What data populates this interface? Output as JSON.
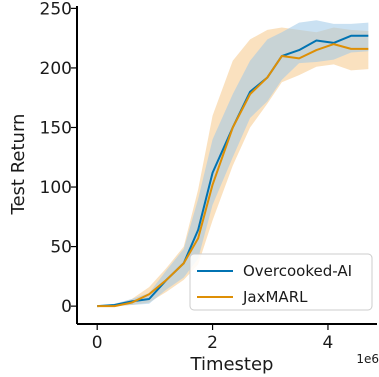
{
  "chart_data": {
    "type": "line",
    "xlabel": "Timestep",
    "ylabel": "Test Return",
    "x_offset_label": "1e6",
    "xlim": [
      -0.35,
      4.85
    ],
    "ylim": [
      -15,
      252
    ],
    "xticks": [
      0,
      2,
      4
    ],
    "xtick_labels": [
      "0",
      "2",
      "4"
    ],
    "yticks": [
      0,
      50,
      100,
      150,
      200,
      250
    ],
    "ytick_labels": [
      "0",
      "50",
      "100",
      "150",
      "200",
      "250"
    ],
    "grid": false,
    "legend_position": "lower right",
    "x": [
      0,
      0.3,
      0.6,
      0.9,
      1.2,
      1.5,
      1.75,
      2.0,
      2.35,
      2.65,
      2.95,
      3.2,
      3.5,
      3.8,
      4.1,
      4.4,
      4.7
    ],
    "series": [
      {
        "name": "Overcooked-AI",
        "color": "#0173b2",
        "band_color": "#9ec9e8",
        "values": [
          0,
          1,
          4,
          6,
          22,
          36,
          64,
          112,
          150,
          180,
          192,
          210,
          215,
          223,
          221,
          227,
          227
        ],
        "lower": [
          0,
          0,
          1,
          2,
          14,
          24,
          40,
          85,
          125,
          158,
          172,
          190,
          204,
          205,
          207,
          213,
          214
        ],
        "upper": [
          0,
          2,
          6,
          11,
          30,
          48,
          90,
          140,
          178,
          206,
          224,
          230,
          238,
          240,
          237,
          237,
          238
        ]
      },
      {
        "name": "JaxMARL",
        "color": "#de8f05",
        "band_color": "#f5c98a",
        "values": [
          0,
          0,
          3,
          10,
          22,
          36,
          57,
          102,
          150,
          178,
          192,
          210,
          208,
          215,
          220,
          216,
          216
        ],
        "lower": [
          0,
          0,
          1,
          3,
          12,
          22,
          35,
          72,
          118,
          150,
          170,
          188,
          194,
          201,
          203,
          198,
          199
        ],
        "upper": [
          0,
          1,
          6,
          16,
          32,
          50,
          98,
          160,
          206,
          224,
          232,
          234,
          232,
          230,
          234,
          232,
          231
        ]
      }
    ]
  }
}
